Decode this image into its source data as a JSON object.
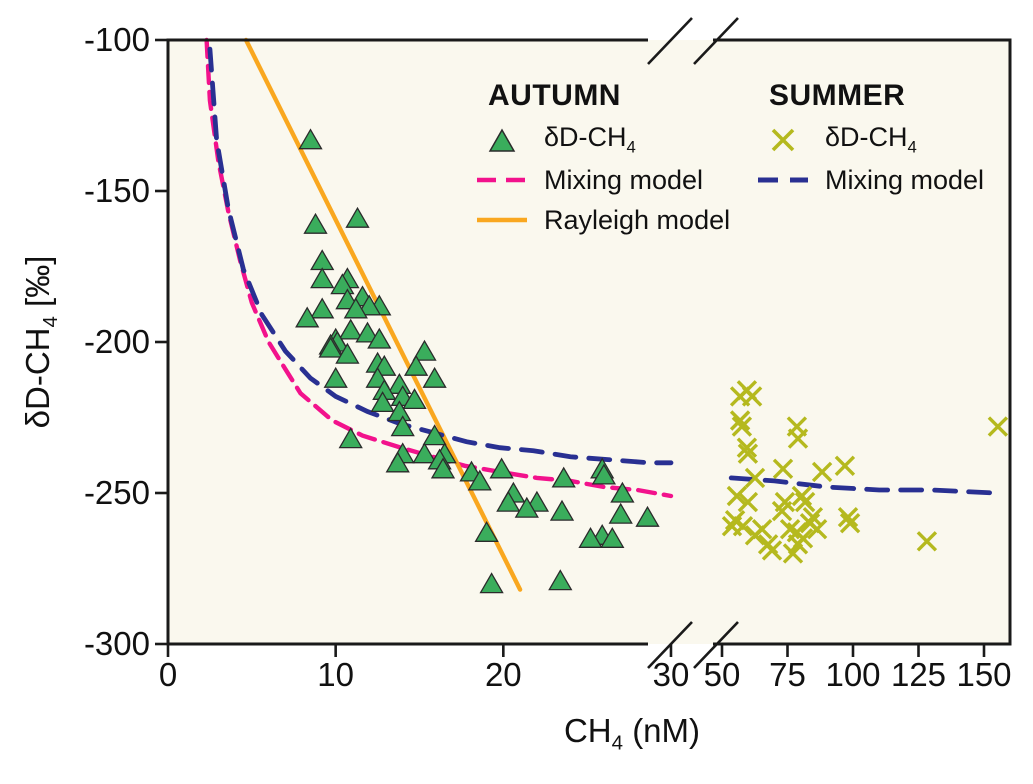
{
  "colors": {
    "plot_bg": "#faf8ee",
    "axis": "#1a1a1a",
    "text": "#111111",
    "autumn_marker": "#3aad5c",
    "autumn_marker_edge": "#2b2b2b",
    "summer_marker": "#b5b91e",
    "autumn_mixing": "#f2128c",
    "rayleigh": "#f9a71f",
    "summer_mixing": "#293092"
  },
  "axes_labels": {
    "x": {
      "prefix": "CH",
      "sub": "4",
      "suffix": " (nM)"
    },
    "y": {
      "prefix": "δD-CH",
      "sub": "4",
      "suffix": "  [‰]"
    }
  },
  "legend": {
    "autumn": {
      "title": "AUTUMN",
      "point_label": {
        "prefix": "δD-CH",
        "sub": "4"
      },
      "mixing_label": "Mixing model",
      "rayleigh_label": "Rayleigh model"
    },
    "summer": {
      "title": "SUMMER",
      "point_label": {
        "prefix": "δD-CH",
        "sub": "4"
      },
      "mixing_label": "Mixing model"
    }
  },
  "chart_data": {
    "type": "scatter",
    "title": "",
    "grid": false,
    "legend_position": "top inside, two columns",
    "x_axis": {
      "label": "CH4 (nM)",
      "break_between": [
        30,
        50
      ],
      "segments": [
        {
          "range": [
            0,
            30.5
          ],
          "ticks": [
            0,
            10,
            20,
            30
          ]
        },
        {
          "range": [
            48,
            158
          ],
          "ticks": [
            50,
            75,
            100,
            125,
            150
          ]
        }
      ]
    },
    "y_axis": {
      "label": "δD-CH4 [‰]",
      "range": [
        -300,
        -100
      ],
      "ticks": [
        -100,
        -150,
        -200,
        -250,
        -300
      ]
    },
    "series": [
      {
        "id": "autumn-points",
        "name": "AUTUMN δD-CH4",
        "kind": "scatter",
        "marker": "triangle",
        "color_key": "autumn_marker",
        "edge_color_key": "autumn_marker_edge",
        "points": [
          [
            8.5,
            -133
          ],
          [
            11.3,
            -159
          ],
          [
            8.8,
            -161
          ],
          [
            9.2,
            -173
          ],
          [
            9.2,
            -179
          ],
          [
            10.7,
            -179
          ],
          [
            10.4,
            -181
          ],
          [
            11.6,
            -185
          ],
          [
            10.7,
            -186
          ],
          [
            12.6,
            -188
          ],
          [
            12.0,
            -188
          ],
          [
            9.2,
            -189
          ],
          [
            11.2,
            -189
          ],
          [
            8.3,
            -192
          ],
          [
            10.9,
            -196
          ],
          [
            11.9,
            -197
          ],
          [
            10.0,
            -199
          ],
          [
            12.6,
            -199
          ],
          [
            10.1,
            -200
          ],
          [
            9.7,
            -201
          ],
          [
            9.7,
            -202
          ],
          [
            15.3,
            -203
          ],
          [
            10.7,
            -204
          ],
          [
            12.5,
            -207
          ],
          [
            12.9,
            -208
          ],
          [
            14.8,
            -208
          ],
          [
            10.0,
            -212
          ],
          [
            12.5,
            -212
          ],
          [
            15.9,
            -212
          ],
          [
            13.8,
            -214
          ],
          [
            12.9,
            -216
          ],
          [
            14.0,
            -218
          ],
          [
            14.7,
            -219
          ],
          [
            12.8,
            -220
          ],
          [
            13.8,
            -223
          ],
          [
            14.0,
            -228
          ],
          [
            15.9,
            -231
          ],
          [
            10.9,
            -232
          ],
          [
            14.0,
            -237
          ],
          [
            16.5,
            -237
          ],
          [
            15.3,
            -237
          ],
          [
            16.2,
            -239
          ],
          [
            13.7,
            -240
          ],
          [
            16.4,
            -242
          ],
          [
            19.9,
            -242
          ],
          [
            25.9,
            -242
          ],
          [
            18.1,
            -243
          ],
          [
            26.0,
            -244
          ],
          [
            23.6,
            -245
          ],
          [
            18.6,
            -246
          ],
          [
            20.6,
            -250
          ],
          [
            27.1,
            -250
          ],
          [
            20.3,
            -253
          ],
          [
            22.0,
            -253
          ],
          [
            21.4,
            -255
          ],
          [
            23.5,
            -256
          ],
          [
            27.0,
            -257
          ],
          [
            28.6,
            -258
          ],
          [
            19.0,
            -263
          ],
          [
            25.9,
            -264
          ],
          [
            25.2,
            -265
          ],
          [
            26.5,
            -265
          ],
          [
            23.4,
            -279
          ],
          [
            19.3,
            -280
          ]
        ]
      },
      {
        "id": "summer-points",
        "name": "SUMMER δD-CH4",
        "kind": "scatter",
        "marker": "x",
        "color_key": "summer_marker",
        "points": [
          [
            59.5,
            -216
          ],
          [
            56.9,
            -218
          ],
          [
            61.5,
            -218
          ],
          [
            56.9,
            -226
          ],
          [
            57.6,
            -228
          ],
          [
            78.6,
            -228
          ],
          [
            79.0,
            -232
          ],
          [
            59.5,
            -235
          ],
          [
            59.9,
            -237
          ],
          [
            62.6,
            -245
          ],
          [
            73.3,
            -242
          ],
          [
            88.2,
            -243
          ],
          [
            96.9,
            -241
          ],
          [
            155.3,
            -228
          ],
          [
            55.7,
            -251
          ],
          [
            59.9,
            -253
          ],
          [
            55.0,
            -259
          ],
          [
            58.0,
            -261
          ],
          [
            53.8,
            -261
          ],
          [
            65.3,
            -262
          ],
          [
            62.6,
            -264
          ],
          [
            74.0,
            -253
          ],
          [
            72.9,
            -256
          ],
          [
            80.5,
            -251
          ],
          [
            81.7,
            -253
          ],
          [
            76.0,
            -262
          ],
          [
            78.6,
            -263
          ],
          [
            83.6,
            -260
          ],
          [
            84.7,
            -258
          ],
          [
            86.3,
            -262
          ],
          [
            80.9,
            -265
          ],
          [
            79.0,
            -267
          ],
          [
            98.1,
            -258
          ],
          [
            98.9,
            -260
          ],
          [
            128.2,
            -266
          ],
          [
            67.6,
            -267
          ],
          [
            69.1,
            -269
          ],
          [
            77.1,
            -270
          ]
        ]
      },
      {
        "id": "autumn-mixing-line",
        "name": "AUTUMN Mixing model",
        "kind": "line",
        "dashed": true,
        "color_key": "autumn_mixing",
        "stroke_width": 4.4,
        "dash": "17 9",
        "segments": [
          [
            [
              2.3,
              -100
            ],
            [
              2.5,
              -120
            ],
            [
              3.0,
              -140
            ],
            [
              3.6,
              -157
            ],
            [
              4.3,
              -173
            ],
            [
              5.0,
              -187
            ],
            [
              6.0,
              -200
            ],
            [
              7.0,
              -209
            ],
            [
              7.9,
              -217
            ],
            [
              9.8,
              -226
            ],
            [
              11.6,
              -231
            ],
            [
              13.9,
              -235
            ],
            [
              15.8,
              -238
            ],
            [
              17.7,
              -241
            ],
            [
              19.8,
              -243
            ],
            [
              22.0,
              -245
            ],
            [
              24.0,
              -246
            ],
            [
              26.0,
              -248
            ],
            [
              28.0,
              -249
            ],
            [
              30.0,
              -251
            ]
          ]
        ]
      },
      {
        "id": "rayleigh-line",
        "name": "AUTUMN Rayleigh model",
        "kind": "line",
        "dashed": false,
        "color_key": "rayleigh",
        "stroke_width": 4.4,
        "segments": [
          [
            [
              4.65,
              -100
            ],
            [
              21.0,
              -282
            ]
          ]
        ]
      },
      {
        "id": "summer-mixing-line",
        "name": "SUMMER Mixing model",
        "kind": "line",
        "dashed": true,
        "color_key": "summer_mixing",
        "stroke_width": 4.8,
        "dash": "21 13",
        "segments": [
          [
            [
              2.5,
              -103
            ],
            [
              2.9,
              -133
            ],
            [
              3.6,
              -156
            ],
            [
              4.5,
              -176
            ],
            [
              5.6,
              -191
            ],
            [
              7.0,
              -203
            ],
            [
              8.5,
              -212
            ],
            [
              10.0,
              -218
            ],
            [
              11.9,
              -223
            ],
            [
              13.8,
              -227
            ],
            [
              15.8,
              -230
            ],
            [
              17.8,
              -233
            ],
            [
              19.8,
              -235
            ],
            [
              21.8,
              -236
            ],
            [
              24.0,
              -238
            ],
            [
              26.4,
              -239
            ],
            [
              28.7,
              -240
            ],
            [
              30.0,
              -240
            ]
          ],
          [
            [
              53.5,
              -245
            ],
            [
              70,
              -246
            ],
            [
              90,
              -248
            ],
            [
              110,
              -249
            ],
            [
              130,
              -249
            ],
            [
              154,
              -250
            ]
          ]
        ]
      }
    ]
  }
}
